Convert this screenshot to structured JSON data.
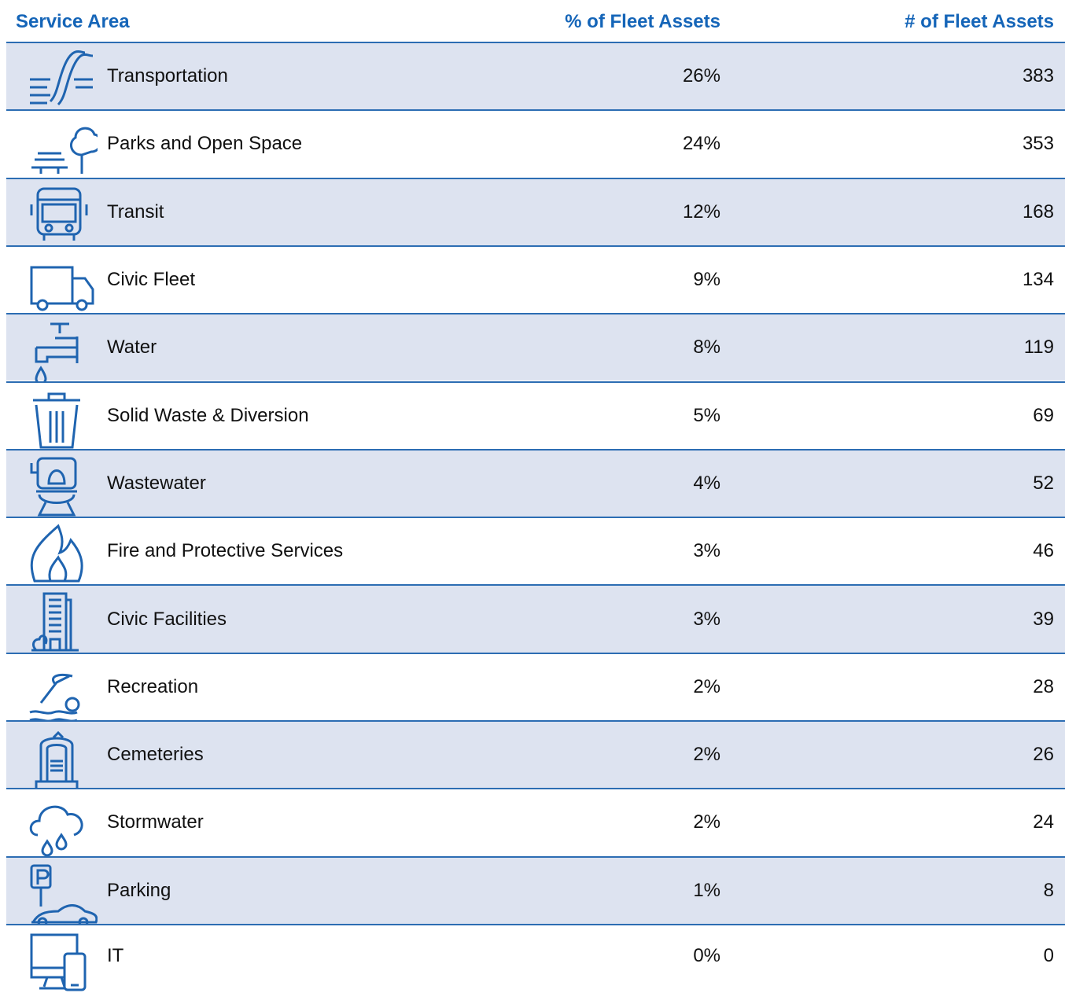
{
  "table": {
    "header": [
      "Service Area",
      "% of Fleet Assets",
      "# of Fleet Assets"
    ],
    "rows": [
      [
        "Transportation",
        "26%",
        383
      ],
      [
        "Parks and Open Space",
        "24%",
        353
      ],
      [
        "Transit",
        "12%",
        168
      ],
      [
        "Civic Fleet",
        "9%",
        134
      ],
      [
        "Water",
        "8%",
        119
      ],
      [
        "Solid Waste & Diversion",
        "5%",
        69
      ],
      [
        "Wastewater",
        "4%",
        52
      ],
      [
        "Fire and Protective Services",
        "3%",
        46
      ],
      [
        "Civic Facilities",
        "3%",
        39
      ],
      [
        "Recreation",
        "2%",
        28
      ],
      [
        "Cemeteries",
        "2%",
        26
      ],
      [
        "Stormwater",
        "2%",
        24
      ],
      [
        "Parking",
        "1%",
        8
      ],
      [
        "IT",
        "0%",
        0
      ]
    ]
  }
}
